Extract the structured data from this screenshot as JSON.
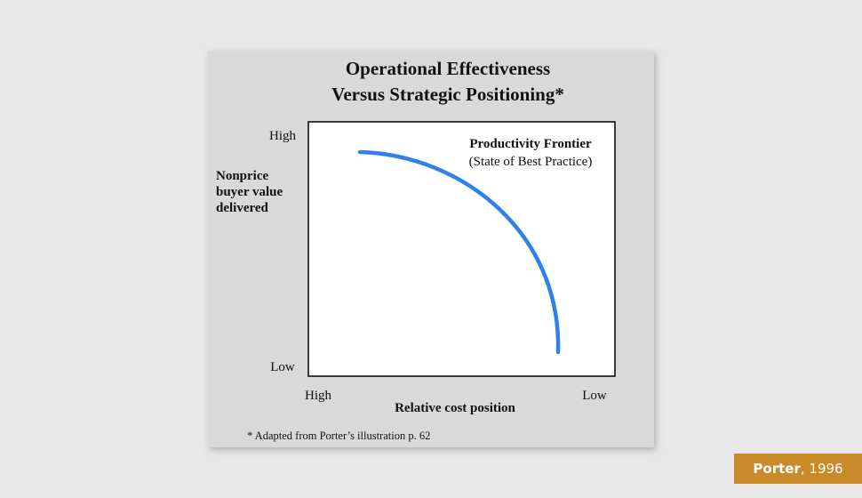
{
  "title": {
    "line1": "Operational Effectiveness",
    "line2": "Versus Strategic Positioning*"
  },
  "y_axis": {
    "high": "High",
    "low": "Low",
    "label_lines": [
      "Nonprice",
      "buyer value",
      "delivered"
    ]
  },
  "x_axis": {
    "high": "High",
    "low": "Low",
    "label": "Relative cost position"
  },
  "curve_label": {
    "title": "Productivity Frontier",
    "subtitle": "(State of Best Practice)"
  },
  "footnote": "* Adapted from Porter’s illustration p. 62",
  "badge": {
    "author": "Porter",
    "year": ", 1996"
  }
}
